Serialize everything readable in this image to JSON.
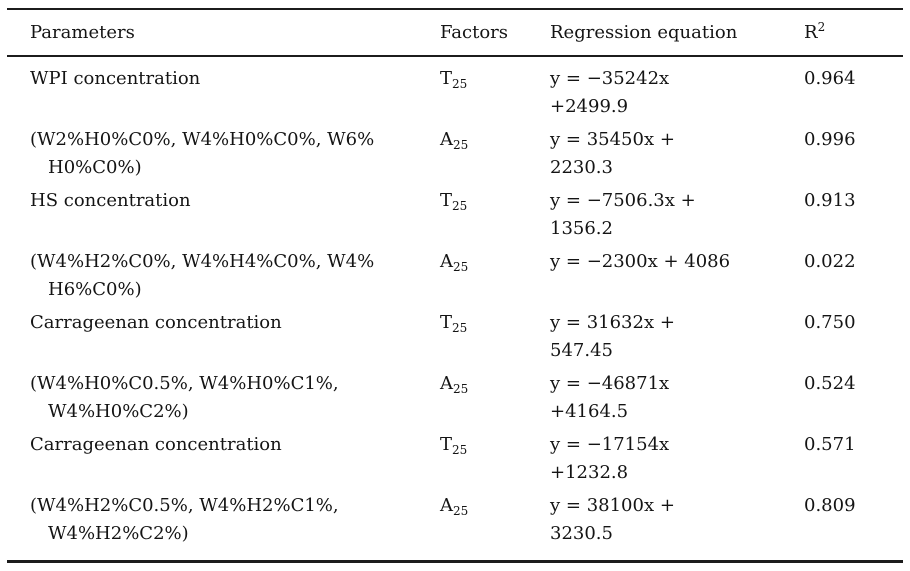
{
  "table": {
    "headers": {
      "parameters": "Parameters",
      "factors": "Factors",
      "equation": "Regression equation",
      "r2_base": "R",
      "r2_sup": "2"
    },
    "rows": [
      {
        "param1": "WPI concentration",
        "param2": "",
        "factor_base": "T",
        "factor_sub": "25",
        "eq1": "y = −35242x",
        "eq2": "+2499.9",
        "r2": "0.964"
      },
      {
        "param1": "(W2%H0%C0%, W4%H0%C0%, W6%",
        "param2": "H0%C0%)",
        "factor_base": "A",
        "factor_sub": "25",
        "eq1": "y = 35450x +",
        "eq2": "2230.3",
        "r2": "0.996"
      },
      {
        "param1": "HS concentration",
        "param2": "",
        "factor_base": "T",
        "factor_sub": "25",
        "eq1": "y = −7506.3x +",
        "eq2": "1356.2",
        "r2": "0.913"
      },
      {
        "param1": "(W4%H2%C0%, W4%H4%C0%, W4%",
        "param2": "H6%C0%)",
        "factor_base": "A",
        "factor_sub": "25",
        "eq1": "y = −2300x + 4086",
        "eq2": "",
        "r2": "0.022"
      },
      {
        "param1": "Carrageenan concentration",
        "param2": "",
        "factor_base": "T",
        "factor_sub": "25",
        "eq1": "y = 31632x +",
        "eq2": "547.45",
        "r2": "0.750"
      },
      {
        "param1": "(W4%H0%C0.5%, W4%H0%C1%,",
        "param2": "W4%H0%C2%)",
        "factor_base": "A",
        "factor_sub": "25",
        "eq1": "y = −46871x",
        "eq2": "+4164.5",
        "r2": "0.524"
      },
      {
        "param1": "Carrageenan concentration",
        "param2": "",
        "factor_base": "T",
        "factor_sub": "25",
        "eq1": "y = −17154x",
        "eq2": "+1232.8",
        "r2": "0.571"
      },
      {
        "param1": "(W4%H2%C0.5%, W4%H2%C1%,",
        "param2": "W4%H2%C2%)",
        "factor_base": "A",
        "factor_sub": "25",
        "eq1": "y = 38100x +",
        "eq2": "3230.5",
        "r2": "0.809"
      }
    ]
  }
}
